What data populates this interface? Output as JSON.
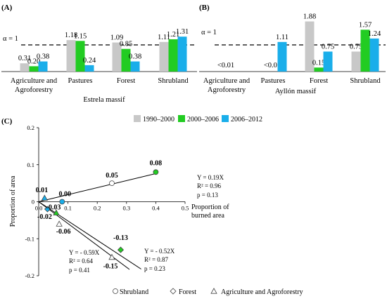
{
  "chart_data": [
    {
      "panel": "(A)",
      "type": "bar",
      "title": "Estrela massif",
      "threshold_label": "α = 1",
      "threshold": 1,
      "categories": [
        "Agriculture and Agroforestry",
        "Pastures",
        "Forest",
        "Shrubland"
      ],
      "series": [
        {
          "name": "1990–2000",
          "color": "#c8c8c8",
          "values": [
            0.31,
            1.18,
            1.09,
            1.11
          ],
          "labels": [
            "0.31",
            "1.18",
            "1.09",
            "1.11"
          ]
        },
        {
          "name": "2000–2006",
          "color": "#22cc22",
          "values": [
            0.2,
            1.15,
            0.85,
            1.21
          ],
          "labels": [
            "0.20",
            "1.15",
            "0.85",
            "1.21"
          ]
        },
        {
          "name": "2006–2012",
          "color": "#1aaeea",
          "values": [
            0.38,
            0.24,
            0.38,
            1.31
          ],
          "labels": [
            "0.38",
            "0.24",
            "0.38",
            "1.31"
          ]
        }
      ],
      "ylim": [
        0,
        2.0
      ]
    },
    {
      "panel": "(B)",
      "type": "bar",
      "title": "Ayllón massif",
      "threshold_label": "α = 1",
      "threshold": 1,
      "categories": [
        "Agriculture and Agroforestry",
        "Pastures",
        "Forest",
        "Shrubland"
      ],
      "series": [
        {
          "name": "1990–2000",
          "color": "#c8c8c8",
          "values": [
            0,
            0,
            1.88,
            0.75
          ],
          "labels": [
            "<0.01",
            "<0.01",
            "1.88",
            "0.75"
          ]
        },
        {
          "name": "2000–2006",
          "color": "#22cc22",
          "values": [
            0,
            0,
            0.15,
            1.57
          ],
          "labels": [
            "",
            "",
            "0.15",
            "1.57"
          ]
        },
        {
          "name": "2006–2012",
          "color": "#1aaeea",
          "values": [
            0,
            1.11,
            0.75,
            1.24
          ],
          "labels": [
            "",
            "1.11",
            "0.75",
            "1.24"
          ]
        }
      ],
      "ylim": [
        0,
        2.0
      ]
    },
    {
      "panel": "(C)",
      "type": "scatter",
      "xlabel": "Proportion of burned area",
      "ylabel": "Proportion of area",
      "xlim": [
        0,
        0.5
      ],
      "ylim": [
        -0.2,
        0.2
      ],
      "xticks": [
        "0.0",
        "0.1",
        "0.2",
        "0.3",
        "0.4",
        "0.5"
      ],
      "yticks": [
        "-0.2",
        "-0.1",
        "0",
        "0.1",
        "0.2"
      ],
      "points": [
        {
          "group": "Shrubland",
          "period": "1990–2000",
          "x": 0.25,
          "y": 0.05,
          "label": "0.05"
        },
        {
          "group": "Shrubland",
          "period": "2000–2006",
          "x": 0.4,
          "y": 0.08,
          "label": "0.08"
        },
        {
          "group": "Agriculture and Agroforestry",
          "period": "2006–2012",
          "x": 0.02,
          "y": 0.01,
          "label": "0.01"
        },
        {
          "group": "Shrubland",
          "period": "2006–2012",
          "x": 0.08,
          "y": 0.0,
          "label": "0.00"
        },
        {
          "group": "Forest",
          "period": "2006–2012",
          "x": 0.03,
          "y": -0.02,
          "label": "-0.02"
        },
        {
          "group": "Agriculture and Agroforestry",
          "period": "2000–2006",
          "x": 0.06,
          "y": -0.03,
          "label": "-0.03"
        },
        {
          "group": "Agriculture and Agroforestry",
          "period": "1990–2000",
          "x": 0.07,
          "y": -0.06,
          "label": "-0.06"
        },
        {
          "group": "Forest",
          "period": "2000–2006",
          "x": 0.28,
          "y": -0.13,
          "label": "-0.13"
        },
        {
          "group": "Agriculture and Agroforestry",
          "period": "1990–2000",
          "x": 0.25,
          "y": -0.15,
          "label": "-0.15"
        }
      ],
      "fits": [
        {
          "group": "Shrubland",
          "slope": 0.19,
          "equation": "Y = 0.19X",
          "r2": "R² = 0.96",
          "p": "p = 0.13",
          "x_range": [
            0,
            0.4
          ]
        },
        {
          "group": "Forest",
          "slope": -0.52,
          "equation": "Y = - 0.52X",
          "r2": "R² = 0.87",
          "p": "p = 0.23",
          "x_range": [
            0,
            0.35
          ]
        },
        {
          "group": "Agriculture and Agroforestry",
          "slope": -0.59,
          "equation": "Y = - 0.59X",
          "r2": "R² = 0.64",
          "p": "p = 0.41",
          "x_range": [
            0,
            0.31
          ]
        }
      ],
      "legend": [
        "Shrubland",
        "Forest",
        "Agriculture and Agroforestry"
      ]
    }
  ]
}
